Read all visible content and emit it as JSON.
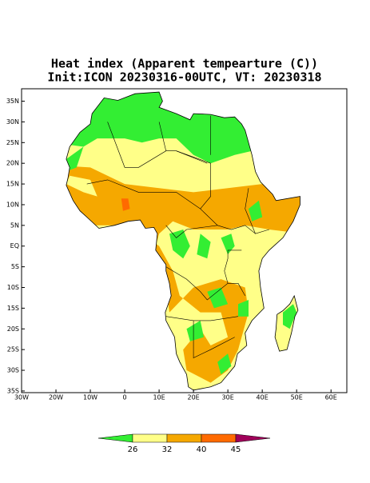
{
  "map": {
    "title": [
      "Heat index (Apparent tempearture (C))",
      "Init:ICON 20230316-00UTC, VT: 20230318"
    ],
    "lonlim": [
      -30,
      64.6
    ],
    "latlim": [
      -35.4,
      38
    ],
    "lon_ticks": [
      {
        "value": -30,
        "label": "30W"
      },
      {
        "value": -20,
        "label": "20W"
      },
      {
        "value": -10,
        "label": "10W"
      },
      0,
      {
        "value": 10,
        "label": "10E"
      },
      {
        "value": 20,
        "label": "20E"
      },
      {
        "value": 30,
        "label": "30E"
      },
      {
        "value": 40,
        "label": "40E"
      },
      {
        "value": 50,
        "label": "50E"
      },
      {
        "value": 60,
        "label": "60E"
      }
    ],
    "lat_ticks": [
      {
        "value": 35,
        "label": "35N"
      },
      {
        "value": 30,
        "label": "30N"
      },
      {
        "value": 25,
        "label": "25N"
      },
      {
        "value": 20,
        "label": "20N"
      },
      {
        "value": 15,
        "label": "15N"
      },
      {
        "value": 10,
        "label": "10N"
      },
      {
        "value": 5,
        "label": "5N"
      },
      {
        "value": 0,
        "label": "EQ"
      },
      {
        "value": -5,
        "label": "5S"
      },
      {
        "value": -10,
        "label": "10S"
      },
      {
        "value": -15,
        "label": "15S"
      },
      {
        "value": -20,
        "label": "20S"
      },
      {
        "value": -25,
        "label": "25S"
      },
      {
        "value": -30,
        "label": "30S"
      },
      {
        "value": -35,
        "label": "35S"
      }
    ],
    "colorbar": {
      "levels": [
        26,
        32,
        40,
        45
      ],
      "colors": [
        "#33ee33",
        "#ffff88",
        "#f5a800",
        "#ff6a00",
        "#a0005a"
      ]
    }
  }
}
